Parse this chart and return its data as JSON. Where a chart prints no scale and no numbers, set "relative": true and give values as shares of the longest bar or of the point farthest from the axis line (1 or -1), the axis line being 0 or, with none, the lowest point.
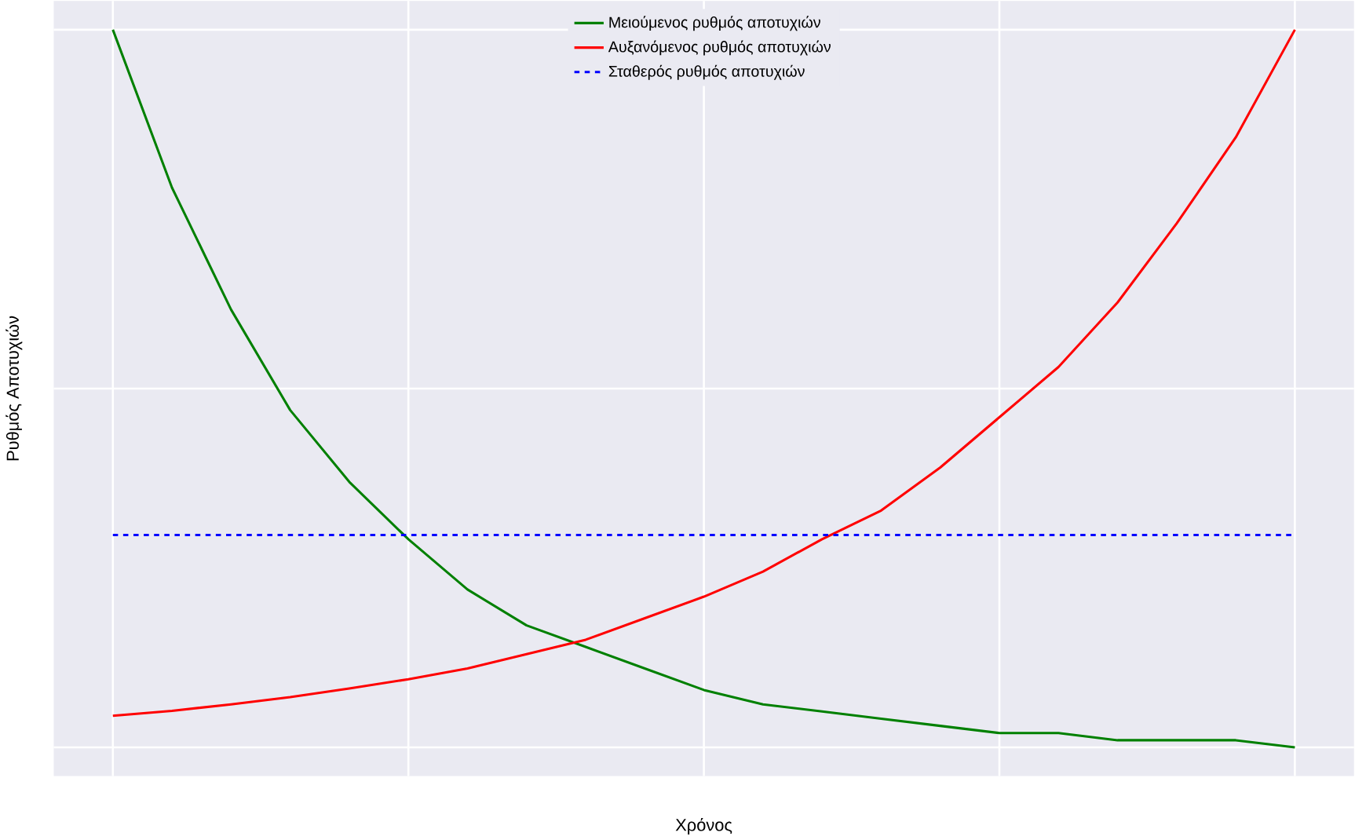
{
  "chart_data": {
    "type": "line",
    "xlabel": "Χρόνος",
    "ylabel": "Ρυθμός Αποτυχιών",
    "relative": true,
    "grid": true,
    "legend": "top",
    "marker": "none",
    "categories": [
      null,
      null,
      null,
      null,
      null,
      null,
      null,
      null,
      null,
      null,
      null,
      null,
      null,
      null,
      null,
      null,
      null,
      null,
      null,
      null,
      null
    ],
    "series": [
      {
        "name": "Μειούμενος ρυθμός αποτυχιών",
        "color": "#008000",
        "line_style": "solid",
        "values": [
          1,
          0.78,
          0.61,
          0.47,
          0.37,
          0.29,
          0.22,
          0.17,
          0.14,
          0.11,
          0.08,
          0.06,
          0.05,
          0.04,
          0.03,
          0.02,
          0.02,
          0.01,
          0.01,
          0.01,
          0
        ]
      },
      {
        "name": "Αυξανόμενος ρυθμός αποτυχιών",
        "color": "#ff0000",
        "line_style": "solid",
        "values": [
          0.044,
          0.051,
          0.06,
          0.07,
          0.082,
          0.095,
          0.11,
          0.13,
          0.15,
          0.18,
          0.21,
          0.245,
          0.29,
          0.33,
          0.39,
          0.46,
          0.53,
          0.62,
          0.73,
          0.85,
          1
        ]
      },
      {
        "name": "Σταθερός ρυθμός αποτυχιών",
        "color": "#0000ff",
        "line_style": "dashed",
        "values": [
          0.296,
          0.296,
          0.296,
          0.296,
          0.296,
          0.296,
          0.296,
          0.296,
          0.296,
          0.296,
          0.296,
          0.296,
          0.296,
          0.296,
          0.296,
          0.296,
          0.296,
          0.296,
          0.296,
          0.296,
          0.296
        ]
      }
    ]
  }
}
